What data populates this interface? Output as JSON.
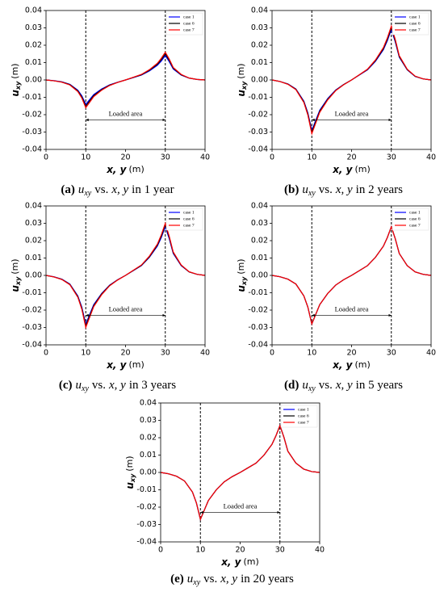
{
  "chart_data": [
    {
      "type": "line",
      "caption": [
        "(a)",
        "u",
        "xy",
        "vs.",
        "x, y",
        "in 1 year"
      ],
      "xlabel": [
        "x, y",
        "(m)"
      ],
      "ylabel": [
        "u",
        "xy",
        "(m)"
      ],
      "x": [
        0,
        2,
        4,
        6,
        8,
        9,
        10,
        11,
        12,
        14,
        16,
        18,
        20,
        22,
        24,
        26,
        28,
        29,
        30,
        31,
        32,
        34,
        36,
        38,
        40
      ],
      "series": [
        {
          "name": "case 1",
          "color": "#0000ff",
          "values": [
            0,
            -0.0004,
            -0.0011,
            -0.0025,
            -0.0059,
            -0.0091,
            -0.014,
            -0.0112,
            -0.0084,
            -0.0052,
            -0.0028,
            -0.0013,
            0,
            0.0014,
            0.0028,
            0.0052,
            0.0084,
            0.0109,
            0.014,
            0.0105,
            0.0063,
            0.0028,
            0.001,
            0.0003,
            0
          ]
        },
        {
          "name": "case 6",
          "color": "#000000",
          "values": [
            0,
            -0.0005,
            -0.0012,
            -0.0027,
            -0.0063,
            -0.0098,
            -0.015,
            -0.012,
            -0.009,
            -0.0056,
            -0.003,
            -0.0014,
            0,
            0.0015,
            0.003,
            0.0056,
            0.009,
            0.0117,
            0.015,
            0.0113,
            0.0068,
            0.003,
            0.0011,
            0.0003,
            0
          ]
        },
        {
          "name": "case 7",
          "color": "#ff0000",
          "values": [
            0,
            -0.0005,
            -0.0013,
            -0.0029,
            -0.0067,
            -0.0104,
            -0.016,
            -0.0128,
            -0.0096,
            -0.0059,
            -0.0032,
            -0.0014,
            0,
            0.0016,
            0.0032,
            0.0059,
            0.0096,
            0.0125,
            0.016,
            0.012,
            0.0072,
            0.0032,
            0.0011,
            0.0003,
            0
          ]
        }
      ],
      "xlim": [
        0,
        40
      ],
      "xticks": [
        0,
        10,
        20,
        30,
        40
      ],
      "ylim": [
        -0.04,
        0.04
      ],
      "yticks": [
        -0.04,
        -0.03,
        -0.02,
        -0.01,
        {
          "value": 0,
          "label": "0.00"
        },
        0.01,
        0.02,
        0.03,
        0.04
      ],
      "vlines": [
        10,
        30
      ],
      "annotation": {
        "text": "Loaded area",
        "x": [
          10,
          30
        ],
        "y": -0.023
      },
      "legend": "upper right"
    },
    {
      "type": "line",
      "caption": [
        "(b)",
        "u",
        "xy",
        "vs.",
        "x, y",
        "in 2 years"
      ],
      "xlabel": [
        "x, y",
        "(m)"
      ],
      "ylabel": [
        "u",
        "xy",
        "(m)"
      ],
      "x": [
        0,
        2,
        4,
        6,
        8,
        9,
        10,
        11,
        12,
        14,
        16,
        18,
        20,
        22,
        24,
        26,
        28,
        29,
        30,
        31,
        32,
        34,
        36,
        38,
        40
      ],
      "series": [
        {
          "name": "case 1",
          "color": "#0000ff",
          "values": [
            0,
            -0.0009,
            -0.0023,
            -0.0052,
            -0.0122,
            -0.0189,
            -0.029,
            -0.0232,
            -0.0174,
            -0.0107,
            -0.0058,
            -0.0026,
            0,
            0.0029,
            0.0058,
            0.0107,
            0.0174,
            0.0226,
            0.029,
            0.0218,
            0.0131,
            0.0058,
            0.002,
            0.0006,
            0
          ]
        },
        {
          "name": "case 6",
          "color": "#000000",
          "values": [
            0,
            -0.0009,
            -0.0024,
            -0.0054,
            -0.0126,
            -0.0195,
            -0.03,
            -0.024,
            -0.018,
            -0.0111,
            -0.006,
            -0.0027,
            0,
            0.003,
            0.006,
            0.0111,
            0.018,
            0.0234,
            0.03,
            0.0225,
            0.0135,
            0.006,
            0.0021,
            0.0006,
            0
          ]
        },
        {
          "name": "case 7",
          "color": "#ff0000",
          "values": [
            0,
            -0.0009,
            -0.0025,
            -0.0056,
            -0.013,
            -0.0202,
            -0.031,
            -0.0248,
            -0.0186,
            -0.0115,
            -0.0062,
            -0.0028,
            0,
            0.0031,
            0.0062,
            0.0115,
            0.0186,
            0.0242,
            0.031,
            0.0233,
            0.014,
            0.0062,
            0.0022,
            0.0006,
            0
          ]
        }
      ],
      "xlim": [
        0,
        40
      ],
      "xticks": [
        0,
        10,
        20,
        30,
        40
      ],
      "ylim": [
        -0.04,
        0.04
      ],
      "yticks": [
        -0.04,
        -0.03,
        -0.02,
        -0.01,
        {
          "value": 0,
          "label": "0.00"
        },
        0.01,
        0.02,
        0.03,
        0.04
      ],
      "vlines": [
        10,
        30
      ],
      "annotation": {
        "text": "Loaded area",
        "x": [
          10,
          30
        ],
        "y": -0.023
      },
      "legend": "upper right"
    },
    {
      "type": "line",
      "caption": [
        "(c)",
        "u",
        "xy",
        "vs.",
        "x, y",
        "in 3 years"
      ],
      "xlabel": [
        "x, y",
        "(m)"
      ],
      "ylabel": [
        "u",
        "xy",
        "(m)"
      ],
      "x": [
        0,
        2,
        4,
        6,
        8,
        9,
        10,
        11,
        12,
        14,
        16,
        18,
        20,
        22,
        24,
        26,
        28,
        29,
        30,
        31,
        32,
        34,
        36,
        38,
        40
      ],
      "series": [
        {
          "name": "case 1",
          "color": "#0000ff",
          "values": [
            0,
            -0.0008,
            -0.0022,
            -0.005,
            -0.0118,
            -0.0182,
            -0.028,
            -0.0224,
            -0.0168,
            -0.0104,
            -0.0056,
            -0.0025,
            0,
            0.0028,
            0.0056,
            0.0104,
            0.0168,
            0.0218,
            0.028,
            0.021,
            0.0126,
            0.0056,
            0.002,
            0.0006,
            0
          ]
        },
        {
          "name": "case 6",
          "color": "#000000",
          "values": [
            0,
            -0.0009,
            -0.0023,
            -0.0052,
            -0.0122,
            -0.0189,
            -0.029,
            -0.0232,
            -0.0174,
            -0.0107,
            -0.0058,
            -0.0026,
            0,
            0.0029,
            0.0058,
            0.0107,
            0.0174,
            0.0226,
            0.029,
            0.0218,
            0.0131,
            0.0058,
            0.002,
            0.0006,
            0
          ]
        },
        {
          "name": "case 7",
          "color": "#ff0000",
          "values": [
            0,
            -0.0009,
            -0.0024,
            -0.0054,
            -0.0126,
            -0.0195,
            -0.03,
            -0.024,
            -0.018,
            -0.0111,
            -0.006,
            -0.0027,
            0,
            0.003,
            0.006,
            0.0111,
            0.018,
            0.0234,
            0.03,
            0.0225,
            0.0135,
            0.006,
            0.0021,
            0.0006,
            0
          ]
        }
      ],
      "xlim": [
        0,
        40
      ],
      "xticks": [
        0,
        10,
        20,
        30,
        40
      ],
      "ylim": [
        -0.04,
        0.04
      ],
      "yticks": [
        -0.04,
        -0.03,
        -0.02,
        -0.01,
        {
          "value": 0,
          "label": "0.00"
        },
        0.01,
        0.02,
        0.03,
        0.04
      ],
      "vlines": [
        10,
        30
      ],
      "annotation": {
        "text": "Loaded area",
        "x": [
          10,
          30
        ],
        "y": -0.023
      },
      "legend": "upper right"
    },
    {
      "type": "line",
      "caption": [
        "(d)",
        "u",
        "xy",
        "vs.",
        "x, y",
        "in 5 years"
      ],
      "xlabel": [
        "x, y",
        "(m)"
      ],
      "ylabel": [
        "u",
        "xy",
        "(m)"
      ],
      "x": [
        0,
        2,
        4,
        6,
        8,
        9,
        10,
        11,
        12,
        14,
        16,
        18,
        20,
        22,
        24,
        26,
        28,
        29,
        30,
        31,
        32,
        34,
        36,
        38,
        40
      ],
      "series": [
        {
          "name": "case 1",
          "color": "#0000ff",
          "values": [
            0,
            -0.0008,
            -0.0022,
            -0.005,
            -0.0118,
            -0.0182,
            -0.028,
            -0.0224,
            -0.0168,
            -0.0104,
            -0.0056,
            -0.0025,
            0,
            0.0028,
            0.0056,
            0.0104,
            0.0168,
            0.0218,
            0.028,
            0.021,
            0.0126,
            0.0056,
            0.002,
            0.0006,
            0
          ]
        },
        {
          "name": "case 6",
          "color": "#000000",
          "values": [
            0,
            -0.0008,
            -0.0022,
            -0.005,
            -0.0118,
            -0.0182,
            -0.028,
            -0.0224,
            -0.0168,
            -0.0104,
            -0.0056,
            -0.0025,
            0,
            0.0028,
            0.0056,
            0.0104,
            0.0168,
            0.0218,
            0.028,
            0.021,
            0.0126,
            0.0056,
            0.002,
            0.0006,
            0
          ]
        },
        {
          "name": "case 7",
          "color": "#ff0000",
          "values": [
            0,
            -0.0008,
            -0.0022,
            -0.005,
            -0.0118,
            -0.0182,
            -0.028,
            -0.0224,
            -0.0168,
            -0.0104,
            -0.0056,
            -0.0025,
            0,
            0.0028,
            0.0056,
            0.0104,
            0.0168,
            0.0218,
            0.028,
            0.021,
            0.0126,
            0.0056,
            0.002,
            0.0006,
            0
          ]
        }
      ],
      "xlim": [
        0,
        40
      ],
      "xticks": [
        0,
        10,
        20,
        30,
        40
      ],
      "ylim": [
        -0.04,
        0.04
      ],
      "yticks": [
        -0.04,
        -0.03,
        -0.02,
        -0.01,
        {
          "value": 0,
          "label": "0.00"
        },
        0.01,
        0.02,
        0.03,
        0.04
      ],
      "vlines": [
        10,
        30
      ],
      "annotation": {
        "text": "Loaded area",
        "x": [
          10,
          30
        ],
        "y": -0.023
      },
      "legend": "upper right"
    },
    {
      "type": "line",
      "caption": [
        "(e)",
        "u",
        "xy",
        "vs.",
        "x, y",
        "in 20 years"
      ],
      "xlabel": [
        "x, y",
        "(m)"
      ],
      "ylabel": [
        "u",
        "xy",
        "(m)"
      ],
      "x": [
        0,
        2,
        4,
        6,
        8,
        9,
        10,
        11,
        12,
        14,
        16,
        18,
        20,
        22,
        24,
        26,
        28,
        29,
        30,
        31,
        32,
        34,
        36,
        38,
        40
      ],
      "series": [
        {
          "name": "case 1",
          "color": "#0000ff",
          "values": [
            0,
            -0.0008,
            -0.0022,
            -0.0049,
            -0.0113,
            -0.0176,
            -0.027,
            -0.0216,
            -0.0162,
            -0.01,
            -0.0054,
            -0.0024,
            0,
            0.0027,
            0.0054,
            0.01,
            0.0162,
            0.0211,
            0.027,
            0.0203,
            0.0122,
            0.0054,
            0.0019,
            0.0005,
            0
          ]
        },
        {
          "name": "case 6",
          "color": "#000000",
          "values": [
            0,
            -0.0008,
            -0.0022,
            -0.0049,
            -0.0113,
            -0.0176,
            -0.027,
            -0.0216,
            -0.0162,
            -0.01,
            -0.0054,
            -0.0024,
            0,
            0.0027,
            0.0054,
            0.01,
            0.0162,
            0.0211,
            0.027,
            0.0203,
            0.0122,
            0.0054,
            0.0019,
            0.0005,
            0
          ]
        },
        {
          "name": "case 7",
          "color": "#ff0000",
          "values": [
            0,
            -0.0008,
            -0.0022,
            -0.0049,
            -0.0113,
            -0.0176,
            -0.027,
            -0.0216,
            -0.0162,
            -0.01,
            -0.0054,
            -0.0024,
            0,
            0.0027,
            0.0054,
            0.01,
            0.0162,
            0.0211,
            0.027,
            0.0203,
            0.0122,
            0.0054,
            0.0019,
            0.0005,
            0
          ]
        }
      ],
      "xlim": [
        0,
        40
      ],
      "xticks": [
        0,
        10,
        20,
        30,
        40
      ],
      "ylim": [
        -0.04,
        0.04
      ],
      "yticks": [
        -0.04,
        -0.03,
        -0.02,
        -0.01,
        {
          "value": 0,
          "label": "0.00"
        },
        0.01,
        0.02,
        0.03,
        0.04
      ],
      "vlines": [
        10,
        30
      ],
      "annotation": {
        "text": "Loaded area",
        "x": [
          10,
          30
        ],
        "y": -0.023
      },
      "legend": "upper right"
    }
  ]
}
